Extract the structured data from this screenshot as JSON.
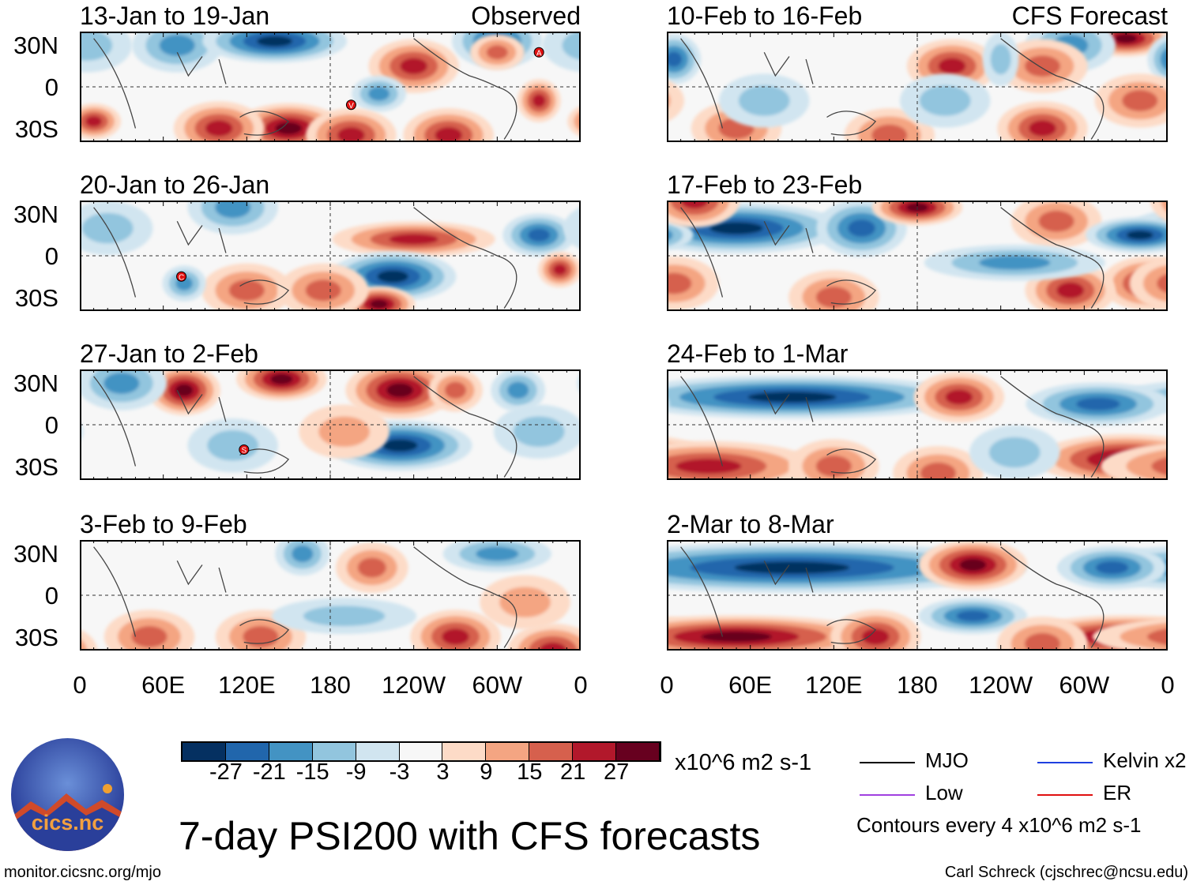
{
  "title": "7-day PSI200 with CFS forecasts",
  "units": "x10^6 m2 s-1",
  "website": "monitor.cicsnc.org/mjo",
  "credit": "Carl Schreck (cjschrec@ncsu.edu)",
  "logo": {
    "text": "cics.nc",
    "ring_text": "Cooperative Institute for Climate and Satellites"
  },
  "labels": {
    "observed": "Observed",
    "forecast": "CFS Forecast"
  },
  "lat_ticks": [
    "30N",
    "0",
    "30S"
  ],
  "lon_ticks": [
    "0",
    "60E",
    "120E",
    "180",
    "120W",
    "60W",
    "0"
  ],
  "colorbar": {
    "colors": [
      "#053061",
      "#2166ac",
      "#4393c3",
      "#92c5de",
      "#d1e5f0",
      "#f7f7f7",
      "#fddbc7",
      "#f4a582",
      "#d6604d",
      "#b2182b",
      "#67001f"
    ],
    "ticks": [
      "-27",
      "-21",
      "-15",
      "-9",
      "-3",
      "3",
      "9",
      "15",
      "21",
      "27"
    ]
  },
  "legend": {
    "items": [
      {
        "label": "MJO",
        "color": "#000000"
      },
      {
        "label": "Kelvin x2",
        "color": "#1f3fe0"
      },
      {
        "label": "Low",
        "color": "#a040e0"
      },
      {
        "label": "ER",
        "color": "#e01010"
      }
    ],
    "note": "Contours every 4 x10^6 m2 s-1"
  },
  "panels": [
    {
      "title": "13-Jan to 19-Jan",
      "col": 0,
      "row": 0,
      "features": [
        [
          70,
          30,
          -15
        ],
        [
          140,
          33,
          -27,
          40,
          12
        ],
        [
          150,
          -30,
          27,
          30,
          14
        ],
        [
          100,
          -30,
          21
        ],
        [
          240,
          15,
          21
        ],
        [
          300,
          33,
          -21
        ],
        [
          10,
          -25,
          21,
          15,
          10
        ],
        [
          330,
          -10,
          21,
          12,
          12
        ],
        [
          215,
          -5,
          -15,
          15,
          10
        ],
        [
          195,
          -35,
          21
        ],
        [
          265,
          -35,
          21
        ],
        [
          300,
          25,
          15,
          15,
          10
        ],
        [
          5,
          30,
          -9
        ]
      ],
      "markers": [
        [
          330,
          25,
          "A"
        ],
        [
          195,
          -13,
          "V"
        ]
      ]
    },
    {
      "title": "20-Jan to 26-Jan",
      "col": 0,
      "row": 1,
      "features": [
        [
          240,
          12,
          21,
          45,
          10
        ],
        [
          330,
          15,
          -21,
          20,
          12
        ],
        [
          345,
          -10,
          21,
          12,
          10
        ],
        [
          110,
          35,
          -15
        ],
        [
          225,
          -15,
          -27,
          35,
          14
        ],
        [
          215,
          -35,
          27,
          20,
          10
        ],
        [
          120,
          -25,
          15
        ],
        [
          175,
          -25,
          15
        ],
        [
          75,
          -20,
          -15,
          12,
          10
        ],
        [
          20,
          20,
          -9
        ]
      ],
      "markers": [
        [
          73,
          -15,
          "C"
        ]
      ]
    },
    {
      "title": "27-Jan to 2-Feb",
      "col": 0,
      "row": 2,
      "features": [
        [
          75,
          25,
          27,
          20,
          14
        ],
        [
          145,
          33,
          27,
          25,
          12
        ],
        [
          230,
          25,
          27,
          30,
          16
        ],
        [
          230,
          -15,
          -27,
          40,
          14
        ],
        [
          315,
          25,
          -15,
          15,
          12
        ],
        [
          270,
          25,
          15,
          15,
          12
        ],
        [
          30,
          30,
          -15
        ],
        [
          330,
          -5,
          -9
        ],
        [
          190,
          -5,
          9
        ],
        [
          110,
          -15,
          -9
        ]
      ],
      "markers": [
        [
          118,
          -18,
          "S"
        ]
      ]
    },
    {
      "title": "3-Feb to 9-Feb",
      "col": 0,
      "row": 3,
      "features": [
        [
          210,
          20,
          15,
          20,
          14
        ],
        [
          160,
          30,
          -15,
          15,
          12
        ],
        [
          300,
          30,
          -15,
          30,
          10
        ],
        [
          130,
          -30,
          15
        ],
        [
          270,
          -30,
          21
        ],
        [
          50,
          -30,
          15
        ],
        [
          340,
          -40,
          21
        ],
        [
          190,
          -15,
          -9,
          40,
          10
        ],
        [
          320,
          -5,
          9
        ]
      ],
      "markers": []
    },
    {
      "title": "10-Feb to 16-Feb",
      "col": 1,
      "row": 0,
      "features": [
        [
          205,
          15,
          21
        ],
        [
          330,
          35,
          27,
          25,
          10
        ],
        [
          290,
          30,
          -15
        ],
        [
          5,
          20,
          -21,
          15,
          14
        ],
        [
          270,
          15,
          15
        ],
        [
          240,
          20,
          -9,
          10,
          15
        ],
        [
          340,
          -10,
          15
        ],
        [
          270,
          -30,
          21
        ],
        [
          160,
          -35,
          15
        ],
        [
          50,
          -30,
          15
        ],
        [
          70,
          -10,
          -9
        ],
        [
          200,
          -10,
          -9
        ]
      ],
      "markers": []
    },
    {
      "title": "17-Feb to 23-Feb",
      "col": 1,
      "row": 1,
      "features": [
        [
          50,
          20,
          -27,
          60,
          14
        ],
        [
          140,
          20,
          -21,
          25,
          16
        ],
        [
          180,
          35,
          27,
          25,
          10
        ],
        [
          280,
          25,
          15
        ],
        [
          340,
          15,
          -27,
          30,
          10
        ],
        [
          20,
          40,
          21
        ],
        [
          345,
          -20,
          21
        ],
        [
          290,
          -25,
          21
        ],
        [
          250,
          -5,
          -15,
          50,
          10
        ],
        [
          120,
          -30,
          15
        ],
        [
          5,
          -20,
          15
        ]
      ],
      "markers": []
    },
    {
      "title": "24-Feb to 1-Mar",
      "col": 1,
      "row": 2,
      "features": [
        [
          90,
          20,
          -27,
          100,
          12
        ],
        [
          210,
          20,
          21,
          25,
          14
        ],
        [
          310,
          15,
          -21,
          40,
          12
        ],
        [
          330,
          -25,
          27,
          50,
          14
        ],
        [
          30,
          -30,
          21,
          60,
          14
        ],
        [
          120,
          -30,
          15
        ],
        [
          195,
          -35,
          15
        ],
        [
          250,
          -20,
          -9
        ]
      ],
      "markers": []
    },
    {
      "title": "2-Mar to 8-Mar",
      "col": 1,
      "row": 3,
      "features": [
        [
          90,
          20,
          -27,
          130,
          14
        ],
        [
          220,
          22,
          27,
          30,
          14
        ],
        [
          320,
          20,
          -21,
          30,
          12
        ],
        [
          330,
          -30,
          27,
          60,
          12
        ],
        [
          50,
          -30,
          27,
          80,
          12
        ],
        [
          150,
          -30,
          21
        ],
        [
          220,
          -15,
          -21,
          30,
          10
        ],
        [
          270,
          -35,
          15
        ]
      ],
      "markers": []
    }
  ]
}
